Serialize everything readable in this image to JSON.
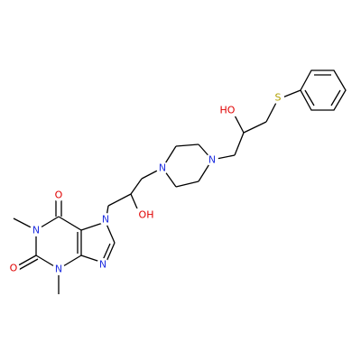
{
  "atoms": [
    {
      "label": "O"
    },
    {
      "label": "N"
    },
    {
      "label": "O"
    },
    {
      "label": "N"
    },
    {
      "label": "N"
    },
    {
      "label": "N"
    },
    {
      "label": "OH"
    },
    {
      "label": "N"
    },
    {
      "label": "N"
    },
    {
      "label": "HO"
    },
    {
      "label": "S"
    }
  ]
}
